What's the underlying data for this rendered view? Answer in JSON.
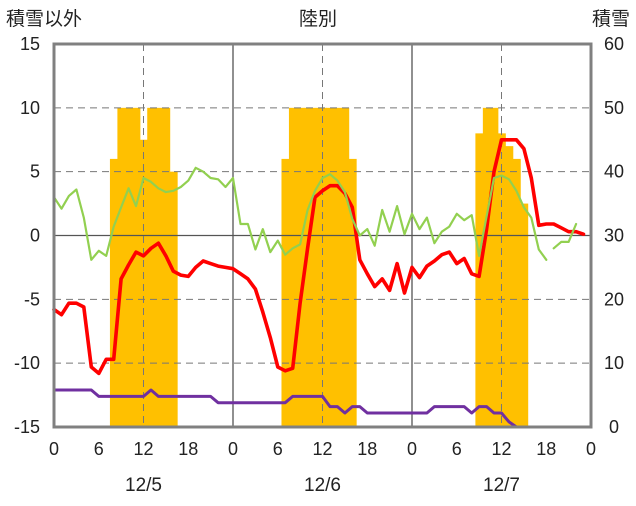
{
  "chart_data": {
    "type": "line",
    "title": "陸別",
    "left_axis_label": "積雪以外",
    "right_axis_label": "積雪",
    "y_left": {
      "min": -15,
      "max": 15,
      "ticks": [
        15,
        10,
        5,
        0,
        -5,
        -10,
        -15
      ]
    },
    "y_right": {
      "min": 0,
      "max": 60,
      "ticks": [
        60,
        50,
        40,
        30,
        20,
        10,
        0
      ]
    },
    "x_hour_ticks": [
      {
        "x": 0,
        "label": "0"
      },
      {
        "x": 6,
        "label": "6"
      },
      {
        "x": 12,
        "label": "12"
      },
      {
        "x": 18,
        "label": "18"
      },
      {
        "x": 24,
        "label": "0"
      },
      {
        "x": 30,
        "label": "6"
      },
      {
        "x": 36,
        "label": "12"
      },
      {
        "x": 42,
        "label": "18"
      },
      {
        "x": 48,
        "label": "0"
      },
      {
        "x": 54,
        "label": "6"
      },
      {
        "x": 60,
        "label": "12"
      },
      {
        "x": 66,
        "label": "18"
      },
      {
        "x": 72,
        "label": "0"
      }
    ],
    "dates": [
      {
        "x": 12,
        "label": "12/5"
      },
      {
        "x": 36,
        "label": "12/6"
      },
      {
        "x": 60,
        "label": "12/7"
      }
    ],
    "x_range": [
      0,
      72
    ],
    "day_boundaries": [
      24,
      48
    ],
    "noon_lines": [
      12,
      36,
      60
    ],
    "bars": {
      "name": "積雪",
      "axis": "right",
      "color": "#ffc000",
      "values": [
        {
          "x": 8,
          "v": 42
        },
        {
          "x": 9,
          "v": 50
        },
        {
          "x": 10,
          "v": 50
        },
        {
          "x": 11,
          "v": 50
        },
        {
          "x": 12,
          "v": 45
        },
        {
          "x": 13,
          "v": 50
        },
        {
          "x": 14,
          "v": 50
        },
        {
          "x": 15,
          "v": 50
        },
        {
          "x": 16,
          "v": 40
        },
        {
          "x": 31,
          "v": 42
        },
        {
          "x": 32,
          "v": 50
        },
        {
          "x": 33,
          "v": 50
        },
        {
          "x": 34,
          "v": 50
        },
        {
          "x": 35,
          "v": 50
        },
        {
          "x": 36,
          "v": 50
        },
        {
          "x": 37,
          "v": 50
        },
        {
          "x": 38,
          "v": 50
        },
        {
          "x": 39,
          "v": 50
        },
        {
          "x": 40,
          "v": 42
        },
        {
          "x": 57,
          "v": 46
        },
        {
          "x": 58,
          "v": 50
        },
        {
          "x": 59,
          "v": 50
        },
        {
          "x": 60,
          "v": 46
        },
        {
          "x": 61,
          "v": 44
        },
        {
          "x": 62,
          "v": 42
        },
        {
          "x": 63,
          "v": 35
        }
      ]
    },
    "series": [
      {
        "color": "#ff0000",
        "axis": "left",
        "points": [
          [
            0,
            -5.8
          ],
          [
            1,
            -6.2
          ],
          [
            2,
            -5.3
          ],
          [
            3,
            -5.3
          ],
          [
            4,
            -5.6
          ],
          [
            5,
            -10.3
          ],
          [
            6,
            -10.8
          ],
          [
            7,
            -9.7
          ],
          [
            8,
            -9.7
          ],
          [
            9,
            -3.4
          ],
          [
            10,
            -2.3
          ],
          [
            11,
            -1.3
          ],
          [
            12,
            -1.6
          ],
          [
            13,
            -1.0
          ],
          [
            14,
            -0.6
          ],
          [
            15,
            -1.6
          ],
          [
            16,
            -2.8
          ],
          [
            17,
            -3.1
          ],
          [
            18,
            -3.2
          ],
          [
            19,
            -2.5
          ],
          [
            20,
            -2.0
          ],
          [
            21,
            -2.2
          ],
          [
            22,
            -2.4
          ],
          [
            23,
            -2.5
          ],
          [
            24,
            -2.6
          ],
          [
            25,
            -3.0
          ],
          [
            26,
            -3.4
          ],
          [
            27,
            -4.2
          ],
          [
            28,
            -6.0
          ],
          [
            29,
            -8.0
          ],
          [
            30,
            -10.3
          ],
          [
            31,
            -10.6
          ],
          [
            32,
            -10.4
          ],
          [
            33,
            -5.3
          ],
          [
            34,
            -1.0
          ],
          [
            35,
            3.0
          ],
          [
            36,
            3.5
          ],
          [
            37,
            3.9
          ],
          [
            38,
            3.9
          ],
          [
            39,
            3.3
          ],
          [
            40,
            2.2
          ],
          [
            41,
            -1.9
          ],
          [
            42,
            -3.0
          ],
          [
            43,
            -4.0
          ],
          [
            44,
            -3.4
          ],
          [
            45,
            -4.3
          ],
          [
            46,
            -2.2
          ],
          [
            47,
            -4.5
          ],
          [
            48,
            -2.5
          ],
          [
            49,
            -3.3
          ],
          [
            50,
            -2.4
          ],
          [
            51,
            -2.0
          ],
          [
            52,
            -1.5
          ],
          [
            53,
            -1.3
          ],
          [
            54,
            -2.2
          ],
          [
            55,
            -1.8
          ],
          [
            56,
            -3.0
          ],
          [
            57,
            -3.2
          ],
          [
            58,
            0.5
          ],
          [
            59,
            5.0
          ],
          [
            60,
            7.5
          ],
          [
            61,
            7.5
          ],
          [
            62,
            7.5
          ],
          [
            63,
            6.8
          ],
          [
            64,
            4.5
          ],
          [
            65,
            0.8
          ],
          [
            66,
            0.9
          ],
          [
            67,
            0.9
          ],
          [
            68,
            0.6
          ],
          [
            69,
            0.3
          ],
          [
            70,
            0.3
          ],
          [
            71,
            0.1
          ]
        ]
      },
      {
        "color": "#92d050",
        "axis": "left",
        "points": [
          [
            0,
            3.0
          ],
          [
            1,
            2.1
          ],
          [
            2,
            3.1
          ],
          [
            3,
            3.6
          ],
          [
            4,
            1.4
          ],
          [
            5,
            -1.9
          ],
          [
            6,
            -1.2
          ],
          [
            7,
            -1.6
          ],
          [
            8,
            0.7
          ],
          [
            9,
            2.2
          ],
          [
            10,
            3.7
          ],
          [
            11,
            2.3
          ],
          [
            12,
            4.5
          ],
          [
            13,
            4.2
          ],
          [
            14,
            3.7
          ],
          [
            15,
            3.4
          ],
          [
            16,
            3.5
          ],
          [
            17,
            3.8
          ],
          [
            18,
            4.3
          ],
          [
            19,
            5.3
          ],
          [
            20,
            5.0
          ],
          [
            21,
            4.5
          ],
          [
            22,
            4.4
          ],
          [
            23,
            3.8
          ],
          [
            24,
            4.5
          ],
          [
            25,
            0.9
          ],
          [
            26,
            0.9
          ],
          [
            27,
            -1.1
          ],
          [
            28,
            0.5
          ],
          [
            29,
            -1.3
          ],
          [
            30,
            -0.4
          ],
          [
            31,
            -1.5
          ],
          [
            32,
            -1.0
          ],
          [
            33,
            -0.7
          ],
          [
            34,
            2.0
          ],
          [
            35,
            3.5
          ],
          [
            36,
            4.5
          ],
          [
            37,
            4.8
          ],
          [
            38,
            4.3
          ],
          [
            39,
            3.4
          ],
          [
            40,
            1.3
          ],
          [
            41,
            0.0
          ],
          [
            42,
            0.5
          ],
          [
            43,
            -0.8
          ],
          [
            44,
            2.0
          ],
          [
            45,
            0.3
          ],
          [
            46,
            2.3
          ],
          [
            47,
            0.1
          ],
          [
            48,
            1.7
          ],
          [
            49,
            0.5
          ],
          [
            50,
            1.4
          ],
          [
            51,
            -0.6
          ],
          [
            52,
            0.3
          ],
          [
            53,
            0.7
          ],
          [
            54,
            1.7
          ],
          [
            55,
            1.2
          ],
          [
            56,
            1.6
          ],
          [
            57,
            -1.6
          ],
          [
            58,
            1.5
          ],
          [
            59,
            4.5
          ],
          [
            60,
            4.7
          ],
          [
            61,
            4.4
          ],
          [
            62,
            3.5
          ],
          [
            63,
            2.2
          ],
          [
            64,
            1.4
          ],
          [
            65,
            -1.1
          ],
          [
            66,
            -1.9
          ],
          [
            null,
            null
          ],
          [
            67,
            -1.0
          ],
          [
            68,
            -0.5
          ],
          [
            69,
            -0.5
          ],
          [
            70,
            0.9
          ]
        ]
      },
      {
        "color": "#7030a0",
        "axis": "left",
        "points": [
          [
            0,
            -12.1
          ],
          [
            1,
            -12.1
          ],
          [
            2,
            -12.1
          ],
          [
            3,
            -12.1
          ],
          [
            4,
            -12.1
          ],
          [
            5,
            -12.1
          ],
          [
            6,
            -12.6
          ],
          [
            7,
            -12.6
          ],
          [
            8,
            -12.6
          ],
          [
            9,
            -12.6
          ],
          [
            10,
            -12.6
          ],
          [
            11,
            -12.6
          ],
          [
            12,
            -12.6
          ],
          [
            13,
            -12.1
          ],
          [
            14,
            -12.6
          ],
          [
            15,
            -12.6
          ],
          [
            16,
            -12.6
          ],
          [
            17,
            -12.6
          ],
          [
            18,
            -12.6
          ],
          [
            19,
            -12.6
          ],
          [
            20,
            -12.6
          ],
          [
            21,
            -12.6
          ],
          [
            22,
            -13.1
          ],
          [
            23,
            -13.1
          ],
          [
            24,
            -13.1
          ],
          [
            25,
            -13.1
          ],
          [
            26,
            -13.1
          ],
          [
            27,
            -13.1
          ],
          [
            28,
            -13.1
          ],
          [
            29,
            -13.1
          ],
          [
            30,
            -13.1
          ],
          [
            31,
            -13.1
          ],
          [
            32,
            -12.6
          ],
          [
            33,
            -12.6
          ],
          [
            34,
            -12.6
          ],
          [
            35,
            -12.6
          ],
          [
            36,
            -12.6
          ],
          [
            37,
            -13.4
          ],
          [
            38,
            -13.4
          ],
          [
            39,
            -13.9
          ],
          [
            40,
            -13.4
          ],
          [
            41,
            -13.4
          ],
          [
            42,
            -13.9
          ],
          [
            43,
            -13.9
          ],
          [
            44,
            -13.9
          ],
          [
            45,
            -13.9
          ],
          [
            46,
            -13.9
          ],
          [
            47,
            -13.9
          ],
          [
            48,
            -13.9
          ],
          [
            49,
            -13.9
          ],
          [
            50,
            -13.9
          ],
          [
            51,
            -13.4
          ],
          [
            52,
            -13.4
          ],
          [
            53,
            -13.4
          ],
          [
            54,
            -13.4
          ],
          [
            55,
            -13.4
          ],
          [
            56,
            -13.9
          ],
          [
            57,
            -13.4
          ],
          [
            58,
            -13.4
          ],
          [
            59,
            -13.9
          ],
          [
            60,
            -13.9
          ],
          [
            61,
            -14.6
          ],
          [
            62,
            -15.0
          ],
          [
            63,
            -15.0
          ],
          [
            64,
            -15.0
          ],
          [
            65,
            -15.0
          ],
          [
            66,
            -15.0
          ],
          [
            67,
            -15.0
          ],
          [
            68,
            -15.0
          ],
          [
            69,
            -15.0
          ],
          [
            70,
            -15.0
          ],
          [
            71,
            -15.0
          ],
          [
            72,
            -15.0
          ]
        ]
      }
    ]
  }
}
